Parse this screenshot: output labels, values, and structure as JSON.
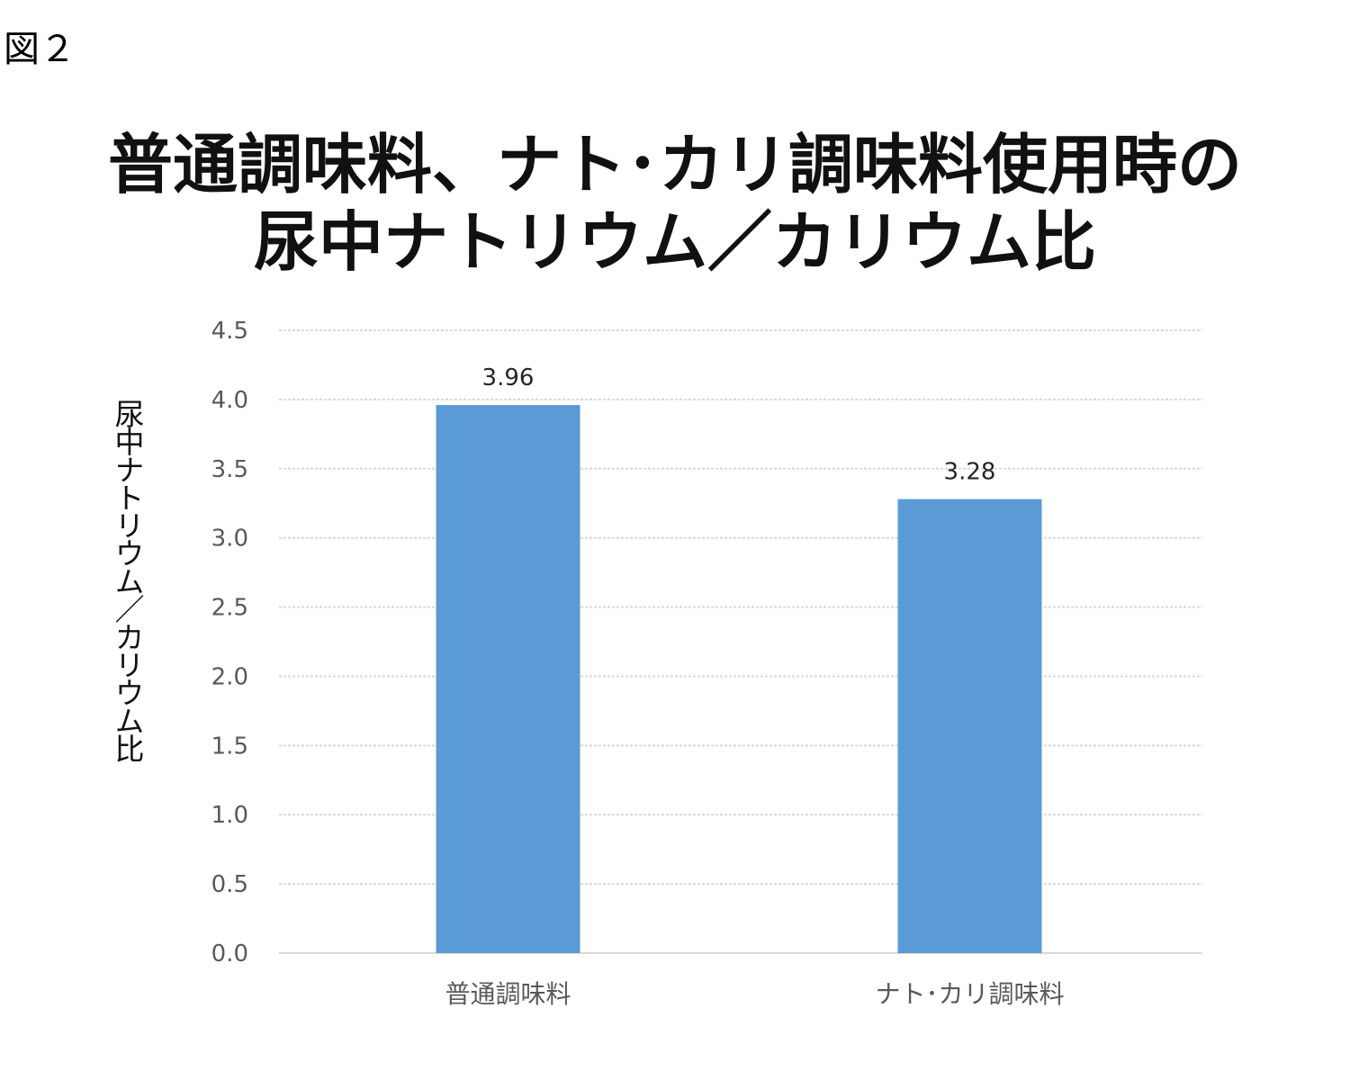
{
  "figure_label": "図２",
  "chart_data": {
    "type": "bar",
    "title_lines": [
      "普通調味料、ナト･カリ調味料使用時の",
      "尿中ナトリウム／カリウム比"
    ],
    "xlabel": "",
    "ylabel": "尿中ナトリウム／カリウム比",
    "categories": [
      "普通調味料",
      "ナト･カリ調味料"
    ],
    "values": [
      3.96,
      3.28
    ],
    "data_labels": [
      "3.96",
      "3.28"
    ],
    "ylim": [
      0,
      4.5
    ],
    "yticks": [
      "0.0",
      "0.5",
      "1.0",
      "1.5",
      "2.0",
      "2.5",
      "3.0",
      "3.5",
      "4.0",
      "4.5"
    ],
    "grid": true,
    "legend": "none",
    "bar_color": "#5B9BD5",
    "grid_color": "#D9D9D9"
  }
}
